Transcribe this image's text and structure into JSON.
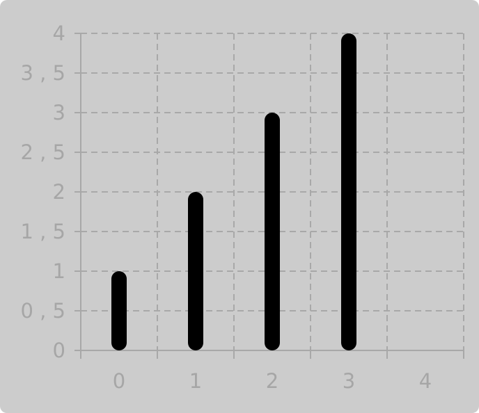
{
  "chart_data": {
    "type": "bar",
    "x_ticks": [
      "0",
      "1",
      "2",
      "3",
      "4"
    ],
    "y_ticks": [
      "0",
      "0 , 5",
      "1",
      "1 , 5",
      "2",
      "2 , 5",
      "3",
      "3 , 5",
      "4"
    ],
    "x": [
      0,
      1,
      2,
      3
    ],
    "values": [
      1,
      2,
      3,
      4
    ],
    "xlim": [
      -0.5,
      4.5
    ],
    "ylim": [
      0,
      4
    ],
    "grid": true,
    "title": "",
    "xlabel": "",
    "ylabel": "",
    "colors": {
      "bar": "#000000",
      "background": "#cccccc",
      "grid": "#a8a8a8",
      "tick_text": "#a6a6a6"
    }
  }
}
